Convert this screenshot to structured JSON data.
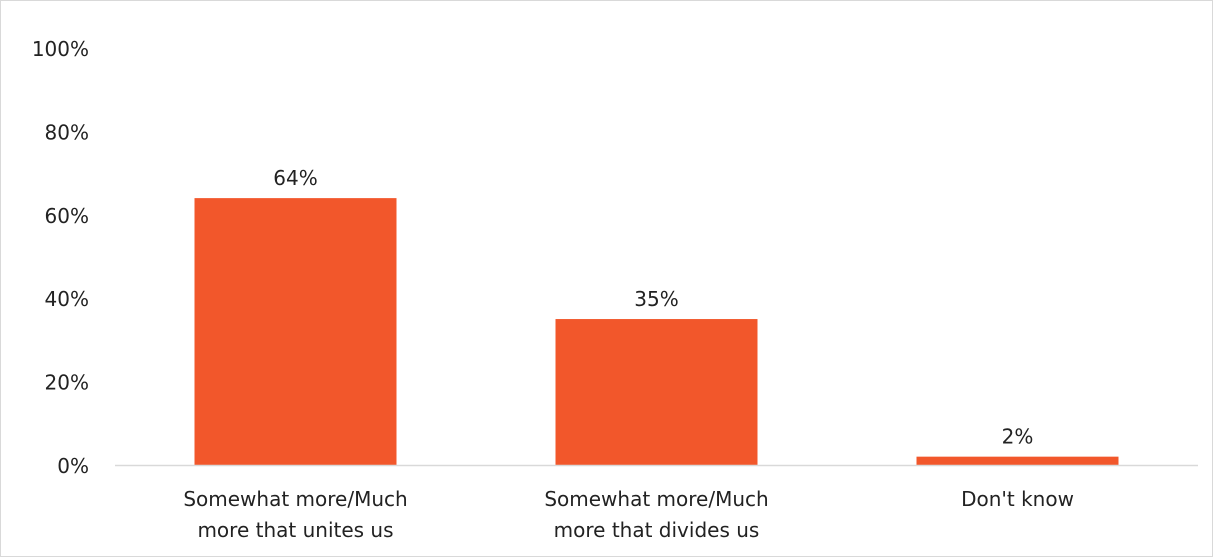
{
  "chart_data": {
    "type": "bar",
    "categories": [
      [
        "Somewhat more/Much",
        "more that unites us"
      ],
      [
        "Somewhat more/Much",
        "more that divides us"
      ],
      [
        "Don't know"
      ]
    ],
    "values": [
      64,
      35,
      2
    ],
    "data_labels": [
      "64%",
      "35%",
      "2%"
    ],
    "yticks": [
      0,
      20,
      40,
      60,
      80,
      100
    ],
    "ytick_labels": [
      "0%",
      "20%",
      "40%",
      "60%",
      "80%",
      "100%"
    ],
    "ylim": [
      0,
      100
    ],
    "bar_color": "#f2572b",
    "axis_color": "#d9d9d9",
    "grid": false,
    "legend": "none"
  }
}
